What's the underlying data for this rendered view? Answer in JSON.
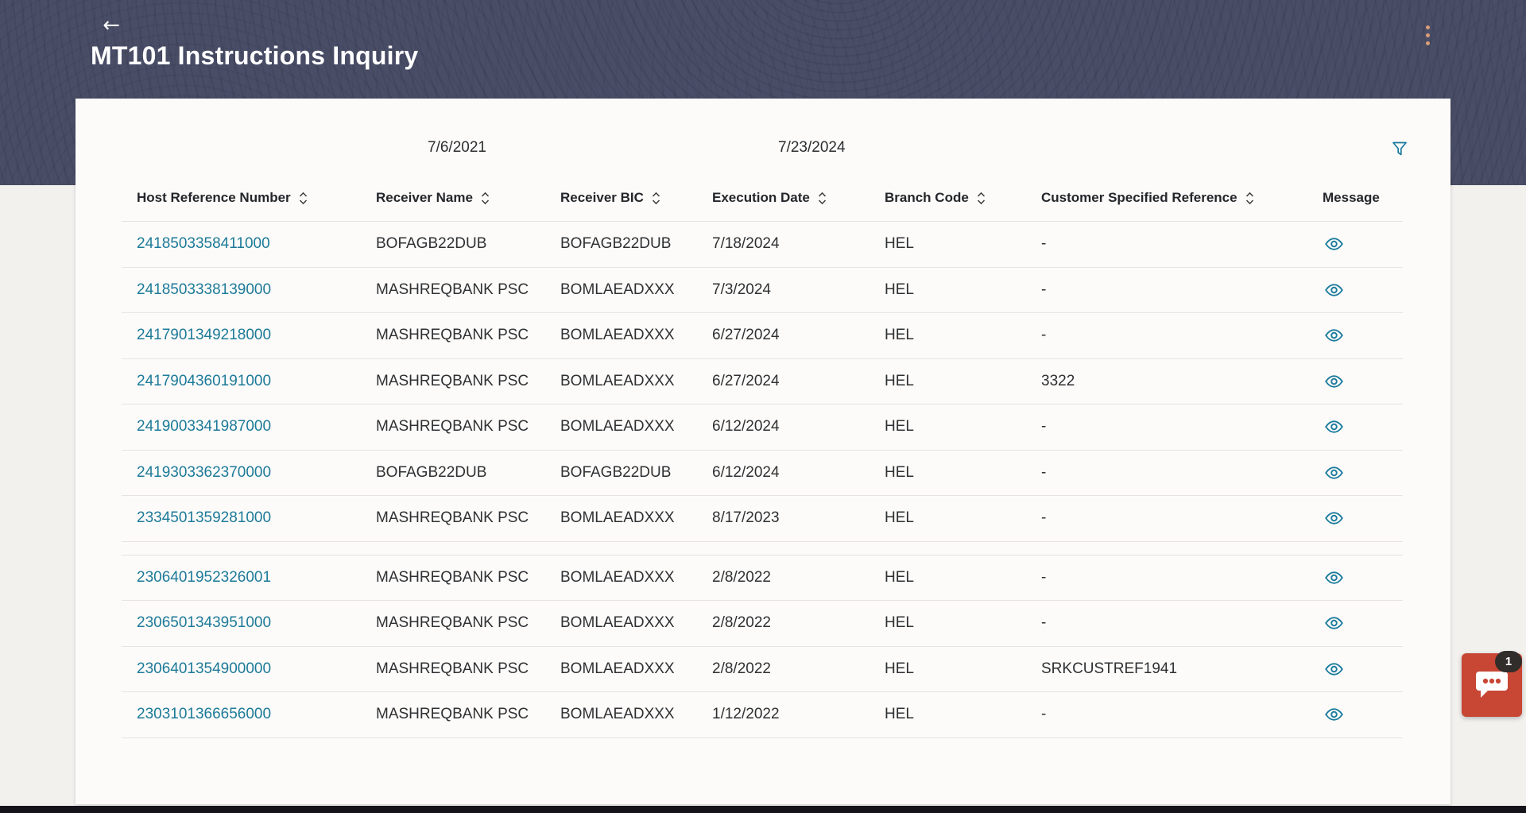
{
  "header": {
    "title": "MT101 Instructions Inquiry",
    "back_icon": "←",
    "menu_icon": "kebab-vertical"
  },
  "filters": {
    "from_date": "7/6/2021",
    "to_date": "7/23/2024",
    "filter_icon": "funnel"
  },
  "table": {
    "columns": [
      {
        "label": "Host Reference Number",
        "sortable": true
      },
      {
        "label": "Receiver Name",
        "sortable": true
      },
      {
        "label": "Receiver BIC",
        "sortable": true
      },
      {
        "label": "Execution Date",
        "sortable": true
      },
      {
        "label": "Branch Code",
        "sortable": true
      },
      {
        "label": "Customer Specified Reference",
        "sortable": true
      },
      {
        "label": "Message",
        "sortable": false
      }
    ],
    "message_icon": "eye",
    "groups": [
      {
        "rows": [
          {
            "host_ref": "2418503358411000",
            "receiver_name": "BOFAGB22DUB",
            "receiver_bic": "BOFAGB22DUB",
            "execution_date": "7/18/2024",
            "branch_code": "HEL",
            "customer_ref": "-"
          },
          {
            "host_ref": "2418503338139000",
            "receiver_name": "MASHREQBANK PSC",
            "receiver_bic": "BOMLAEADXXX",
            "execution_date": "7/3/2024",
            "branch_code": "HEL",
            "customer_ref": "-"
          },
          {
            "host_ref": "2417901349218000",
            "receiver_name": "MASHREQBANK PSC",
            "receiver_bic": "BOMLAEADXXX",
            "execution_date": "6/27/2024",
            "branch_code": "HEL",
            "customer_ref": "-"
          },
          {
            "host_ref": "2417904360191000",
            "receiver_name": "MASHREQBANK PSC",
            "receiver_bic": "BOMLAEADXXX",
            "execution_date": "6/27/2024",
            "branch_code": "HEL",
            "customer_ref": "3322"
          },
          {
            "host_ref": "2419003341987000",
            "receiver_name": "MASHREQBANK PSC",
            "receiver_bic": "BOMLAEADXXX",
            "execution_date": "6/12/2024",
            "branch_code": "HEL",
            "customer_ref": "-"
          },
          {
            "host_ref": "2419303362370000",
            "receiver_name": "BOFAGB22DUB",
            "receiver_bic": "BOFAGB22DUB",
            "execution_date": "6/12/2024",
            "branch_code": "HEL",
            "customer_ref": "-"
          },
          {
            "host_ref": "2334501359281000",
            "receiver_name": "MASHREQBANK PSC",
            "receiver_bic": "BOMLAEADXXX",
            "execution_date": "8/17/2023",
            "branch_code": "HEL",
            "customer_ref": "-"
          }
        ]
      },
      {
        "rows": [
          {
            "host_ref": "2306401952326001",
            "receiver_name": "MASHREQBANK PSC",
            "receiver_bic": "BOMLAEADXXX",
            "execution_date": "2/8/2022",
            "branch_code": "HEL",
            "customer_ref": "-"
          },
          {
            "host_ref": "2306501343951000",
            "receiver_name": "MASHREQBANK PSC",
            "receiver_bic": "BOMLAEADXXX",
            "execution_date": "2/8/2022",
            "branch_code": "HEL",
            "customer_ref": "-"
          },
          {
            "host_ref": "2306401354900000",
            "receiver_name": "MASHREQBANK PSC",
            "receiver_bic": "BOMLAEADXXX",
            "execution_date": "2/8/2022",
            "branch_code": "HEL",
            "customer_ref": "SRKCUSTREF1941"
          },
          {
            "host_ref": "2303101366656000",
            "receiver_name": "MASHREQBANK PSC",
            "receiver_bic": "BOMLAEADXXX",
            "execution_date": "1/12/2022",
            "branch_code": "HEL",
            "customer_ref": "-"
          }
        ]
      }
    ]
  },
  "chat": {
    "badge_count": "1",
    "icon": "speech-bubble"
  },
  "colors": {
    "header_bg": "#464a64",
    "accent_teal": "#1a7a9c",
    "link": "#1d7a99",
    "chat_red": "#c74634",
    "badge_bg": "#312d2a",
    "kebab_dots": "#db9e77",
    "card_bg": "#fcfbf9",
    "page_bg": "#f2f1ee",
    "row_border": "#e7e4df"
  }
}
